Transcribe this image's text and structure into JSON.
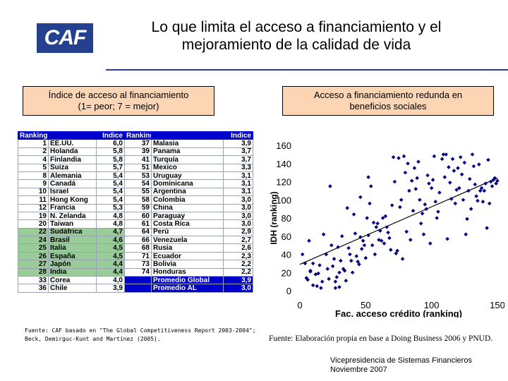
{
  "logo": {
    "text": "CAF"
  },
  "title": {
    "line1": "Lo que limita el acceso a financiamiento y el",
    "line2": "mejoramiento de la calidad de vida"
  },
  "left_box": {
    "line1": "Índice de acceso al financiamiento",
    "line2": "(1= peor; 7 = mejor)"
  },
  "right_box": {
    "line1": "Acceso a financiamiento redunda en",
    "line2": "beneficios sociales"
  },
  "table": {
    "headers": [
      "Ranking",
      "Indice",
      "Ranking",
      "Indice"
    ],
    "rows": [
      {
        "r1": "1",
        "c1": "EE.UU.",
        "i1": "6,0",
        "r2": "37",
        "c2": "Malasia",
        "i2": "3,9",
        "style": "white"
      },
      {
        "r1": "2",
        "c1": "Holanda",
        "i1": "5,8",
        "r2": "39",
        "c2": "Panama",
        "i2": "3,7",
        "style": "white"
      },
      {
        "r1": "4",
        "c1": "Finlandia",
        "i1": "5,8",
        "r2": "41",
        "c2": "Turquía",
        "i2": "3,7",
        "style": "white"
      },
      {
        "r1": "5",
        "c1": "Suiza",
        "i1": "5,7",
        "r2": "51",
        "c2": "Mexico",
        "i2": "3,3",
        "style": "white"
      },
      {
        "r1": "8",
        "c1": "Alemania",
        "i1": "5,4",
        "r2": "53",
        "c2": "Uruguay",
        "i2": "3,1",
        "style": "white"
      },
      {
        "r1": "9",
        "c1": "Canadá",
        "i1": "5,4",
        "r2": "54",
        "c2": "Dominicana",
        "i2": "3,1",
        "style": "white"
      },
      {
        "r1": "10",
        "c1": "Israel",
        "i1": "5,4",
        "r2": "55",
        "c2": "Argentina",
        "i2": "3,1",
        "style": "white"
      },
      {
        "r1": "11",
        "c1": "Hong Kong",
        "i1": "5,4",
        "r2": "58",
        "c2": "Colombia",
        "i2": "3,0",
        "style": "white"
      },
      {
        "r1": "12",
        "c1": "Francia",
        "i1": "5,3",
        "r2": "59",
        "c2": "China",
        "i2": "3,0",
        "style": "white"
      },
      {
        "r1": "19",
        "c1": "N. Zelanda",
        "i1": "4,8",
        "r2": "60",
        "c2": "Paraguay",
        "i2": "3,0",
        "style": "white"
      },
      {
        "r1": "20",
        "c1": "Taiwan",
        "i1": "4,8",
        "r2": "61",
        "c2": "Costa Rica",
        "i2": "3,0",
        "style": "white"
      },
      {
        "r1": "22",
        "c1": "Sudáfrica",
        "i1": "4,7",
        "r2": "64",
        "c2": "Perú",
        "i2": "2,9",
        "style": "green"
      },
      {
        "r1": "24",
        "c1": "Brasil",
        "i1": "4,6",
        "r2": "66",
        "c2": "Venezuela",
        "i2": "2,7",
        "style": "green"
      },
      {
        "r1": "25",
        "c1": "Italia",
        "i1": "4,5",
        "r2": "68",
        "c2": "Rusia",
        "i2": "2,6",
        "style": "green"
      },
      {
        "r1": "26",
        "c1": "España",
        "i1": "4,5",
        "r2": "71",
        "c2": "Ecuador",
        "i2": "2,3",
        "style": "green"
      },
      {
        "r1": "27",
        "c1": "Japón",
        "i1": "4,4",
        "r2": "73",
        "c2": "Bolivia",
        "i2": "2,2",
        "style": "green"
      },
      {
        "r1": "28",
        "c1": "India",
        "i1": "4,4",
        "r2": "74",
        "c2": "Honduras",
        "i2": "2,2",
        "style": "green"
      },
      {
        "r1": "33",
        "c1": "Corea",
        "i1": "4,0",
        "r2": "",
        "c2": "Promedio Global",
        "i2": "3,9",
        "style": "grey"
      },
      {
        "r1": "36",
        "c1": "Chile",
        "i1": "3,9",
        "r2": "",
        "c2": "Promedio AL",
        "i2": "3,0",
        "style": "grey"
      }
    ]
  },
  "source_left": {
    "line1": "Fuente: CAF basado en \"The Global Competitiveness Report 2003-2004\";",
    "line2": "Beck, Demirguc-Kunt and Martínez (2005)."
  },
  "source_right": "Fuente: Elaboración propia en base a Doing Business 2006 y PNUD.",
  "footer": {
    "line1": "Vicepresidencia de Sistemas Financieros",
    "line2": "Noviembre 2007"
  },
  "colors": {
    "header_blue": "#0000cc",
    "green_row": "#99cc99",
    "grey_row": "#cfcfcf",
    "box_fill": "#fcd5b4",
    "marker": "#000080",
    "accent_rule": "#2a3f8c"
  },
  "chart_data": {
    "type": "scatter",
    "title": "",
    "xlabel": "Fac. acceso crédito (ranking)",
    "ylabel": "IDH (ranking)",
    "xlim": [
      0,
      150
    ],
    "ylim": [
      0,
      160
    ],
    "xticks": [
      "0",
      "50",
      "100",
      "150"
    ],
    "yticks": [
      "0",
      "20",
      "40",
      "60",
      "80",
      "100",
      "120",
      "140",
      "160"
    ],
    "trendline": {
      "x": [
        0,
        150
      ],
      "y": [
        29,
        124
      ]
    },
    "points": [
      [
        2,
        40
      ],
      [
        4,
        30
      ],
      [
        5,
        14
      ],
      [
        6,
        12
      ],
      [
        7,
        55
      ],
      [
        8,
        21
      ],
      [
        8,
        22
      ],
      [
        10,
        30
      ],
      [
        10,
        6
      ],
      [
        12,
        18
      ],
      [
        13,
        5
      ],
      [
        14,
        19
      ],
      [
        15,
        28
      ],
      [
        16,
        3
      ],
      [
        17,
        10
      ],
      [
        18,
        62
      ],
      [
        20,
        40
      ],
      [
        21,
        24
      ],
      [
        22,
        13
      ],
      [
        23,
        115
      ],
      [
        24,
        50
      ],
      [
        25,
        27
      ],
      [
        26,
        35
      ],
      [
        27,
        10
      ],
      [
        27,
        3
      ],
      [
        28,
        15
      ],
      [
        29,
        48
      ],
      [
        30,
        4
      ],
      [
        30,
        20
      ],
      [
        31,
        33
      ],
      [
        32,
        60
      ],
      [
        33,
        24
      ],
      [
        34,
        22
      ],
      [
        35,
        11
      ],
      [
        36,
        91
      ],
      [
        37,
        47
      ],
      [
        38,
        40
      ],
      [
        39,
        33
      ],
      [
        40,
        20
      ],
      [
        41,
        84
      ],
      [
        42,
        63
      ],
      [
        43,
        38
      ],
      [
        44,
        32
      ],
      [
        45,
        29
      ],
      [
        46,
        103
      ],
      [
        46,
        59
      ],
      [
        47,
        46
      ],
      [
        48,
        55
      ],
      [
        49,
        50
      ],
      [
        50,
        36
      ],
      [
        51,
        80
      ],
      [
        52,
        125
      ],
      [
        52,
        61
      ],
      [
        53,
        96
      ],
      [
        54,
        115
      ],
      [
        55,
        50
      ],
      [
        56,
        75
      ],
      [
        57,
        40
      ],
      [
        58,
        70
      ],
      [
        59,
        74
      ],
      [
        60,
        56
      ],
      [
        61,
        66
      ],
      [
        62,
        55
      ],
      [
        63,
        80
      ],
      [
        64,
        52
      ],
      [
        65,
        82
      ],
      [
        66,
        70
      ],
      [
        67,
        64
      ],
      [
        68,
        58
      ],
      [
        69,
        45
      ],
      [
        70,
        94
      ],
      [
        71,
        147
      ],
      [
        72,
        120
      ],
      [
        73,
        41
      ],
      [
        74,
        44
      ],
      [
        75,
        146
      ],
      [
        76,
        92
      ],
      [
        77,
        100
      ],
      [
        78,
        35
      ],
      [
        79,
        148
      ],
      [
        80,
        130
      ],
      [
        81,
        65
      ],
      [
        82,
        140
      ],
      [
        83,
        110
      ],
      [
        84,
        56
      ],
      [
        85,
        121
      ],
      [
        86,
        88
      ],
      [
        87,
        135
      ],
      [
        88,
        112
      ],
      [
        89,
        124
      ],
      [
        90,
        142
      ],
      [
        91,
        100
      ],
      [
        92,
        74
      ],
      [
        93,
        85
      ],
      [
        94,
        62
      ],
      [
        95,
        95
      ],
      [
        96,
        90
      ],
      [
        97,
        127
      ],
      [
        98,
        118
      ],
      [
        99,
        52
      ],
      [
        100,
        113
      ],
      [
        101,
        122
      ],
      [
        102,
        148
      ],
      [
        103,
        98
      ],
      [
        104,
        80
      ],
      [
        105,
        87
      ],
      [
        106,
        108
      ],
      [
        108,
        145
      ],
      [
        109,
        150
      ],
      [
        110,
        125
      ],
      [
        111,
        150
      ],
      [
        112,
        57
      ],
      [
        113,
        136
      ],
      [
        114,
        119
      ],
      [
        115,
        101
      ],
      [
        116,
        145
      ],
      [
        117,
        132
      ],
      [
        118,
        96
      ],
      [
        119,
        111
      ],
      [
        120,
        135
      ],
      [
        121,
        113
      ],
      [
        122,
        147
      ],
      [
        123,
        128
      ],
      [
        124,
        100
      ],
      [
        125,
        141
      ],
      [
        126,
        62
      ],
      [
        127,
        79
      ],
      [
        128,
        110
      ],
      [
        129,
        123
      ],
      [
        130,
        90
      ],
      [
        131,
        150
      ],
      [
        132,
        137
      ],
      [
        133,
        117
      ],
      [
        134,
        104
      ],
      [
        135,
        99
      ],
      [
        136,
        139
      ],
      [
        137,
        110
      ],
      [
        138,
        113
      ],
      [
        139,
        98
      ],
      [
        140,
        110
      ],
      [
        141,
        118
      ],
      [
        142,
        69
      ],
      [
        143,
        144
      ],
      [
        144,
        96
      ],
      [
        145,
        120
      ],
      [
        146,
        115
      ],
      [
        147,
        122
      ],
      [
        148,
        124
      ],
      [
        149,
        118
      ],
      [
        150,
        121
      ]
    ]
  }
}
